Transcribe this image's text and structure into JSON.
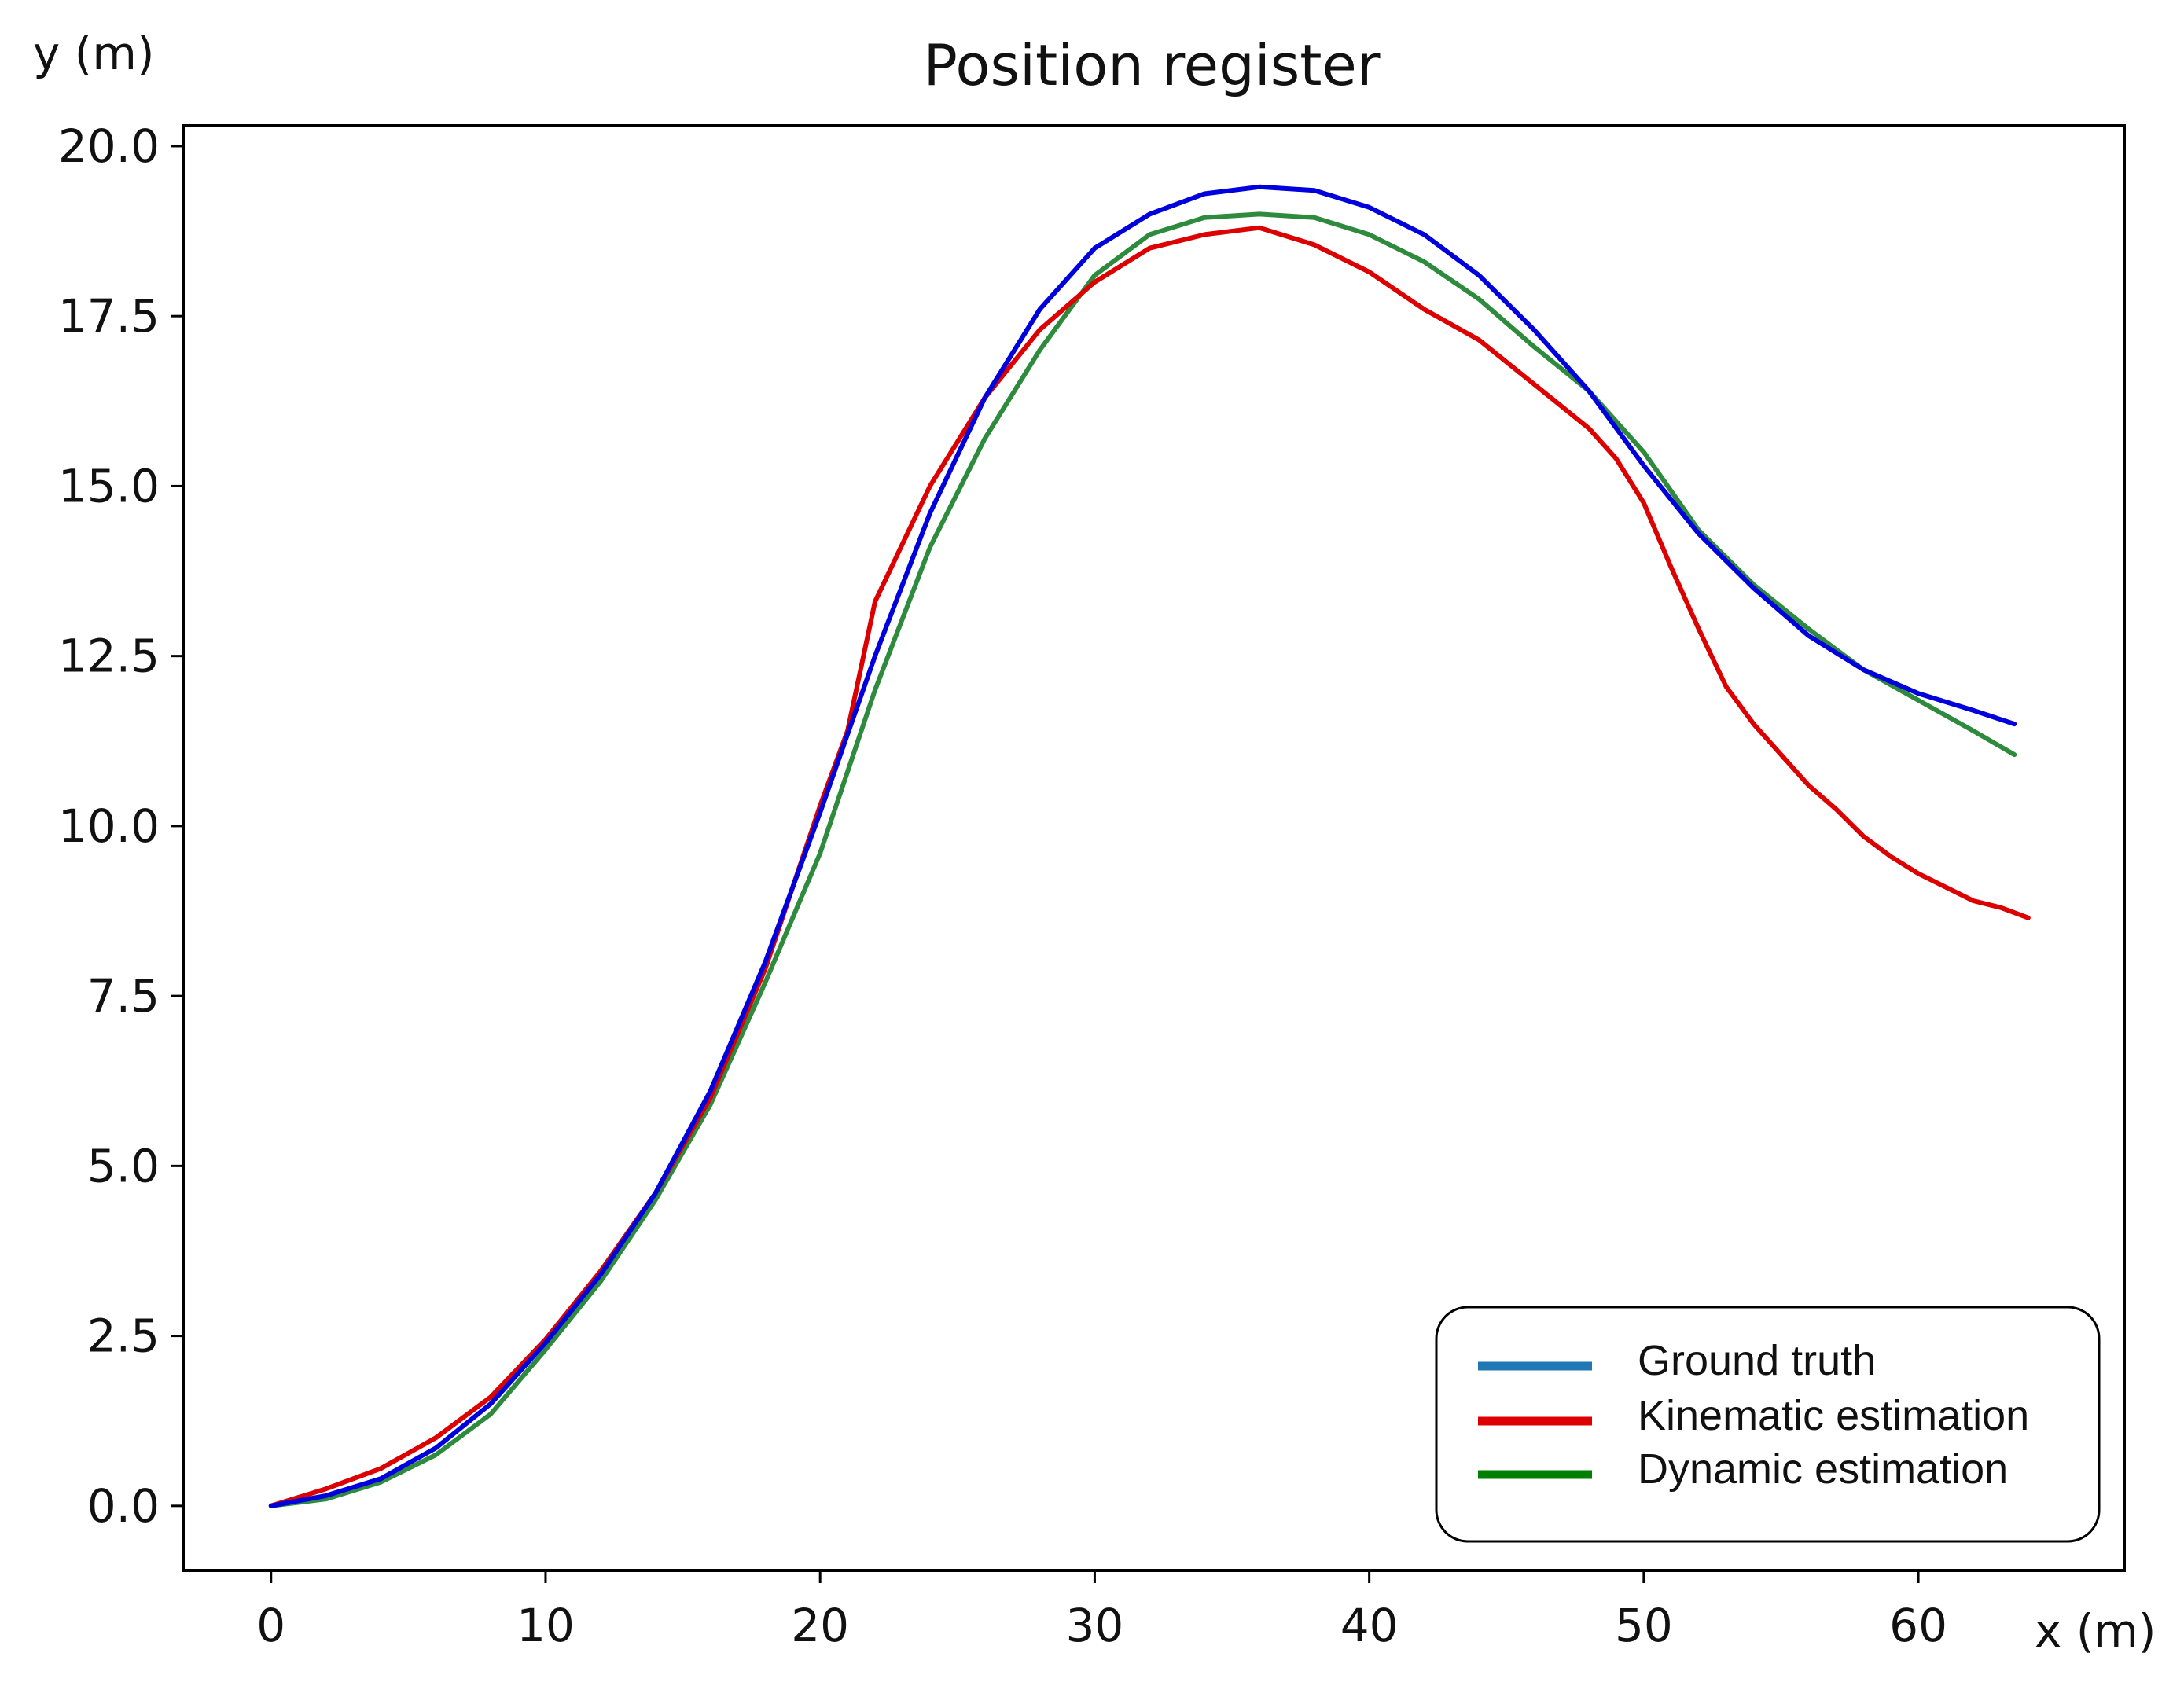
{
  "chart_data": {
    "type": "line",
    "title": "Position register",
    "xlabel": "x (m)",
    "ylabel": "y (m)",
    "xlim": [
      -3.2,
      67.5
    ],
    "ylim": [
      -0.95,
      20.3
    ],
    "xticks": [
      0,
      10,
      20,
      30,
      40,
      50,
      60
    ],
    "xtick_labels": [
      "0",
      "10",
      "20",
      "30",
      "40",
      "50",
      "60"
    ],
    "yticks": [
      0.0,
      2.5,
      5.0,
      7.5,
      10.0,
      12.5,
      15.0,
      17.5,
      20.0
    ],
    "ytick_labels": [
      "0.0",
      "2.5",
      "5.0",
      "7.5",
      "10.0",
      "12.5",
      "15.0",
      "17.5",
      "20.0"
    ],
    "grid": false,
    "legend_position": "lower-right",
    "series": [
      {
        "name": "Ground truth",
        "color": "#0000dd",
        "legend_color": "#1f77b4",
        "x": [
          0,
          2,
          4,
          6,
          8,
          10,
          12,
          14,
          16,
          18,
          20,
          22,
          24,
          26,
          28,
          30,
          32,
          34,
          36,
          38,
          40,
          42,
          44,
          46,
          48,
          50,
          52,
          54,
          56,
          58,
          60,
          62,
          63.5
        ],
        "y": [
          0.0,
          0.15,
          0.4,
          0.85,
          1.5,
          2.4,
          3.4,
          4.6,
          6.1,
          8.0,
          10.2,
          12.5,
          14.6,
          16.3,
          17.6,
          18.5,
          19.0,
          19.3,
          19.4,
          19.35,
          19.1,
          18.7,
          18.1,
          17.3,
          16.4,
          15.3,
          14.3,
          13.5,
          12.8,
          12.3,
          11.95,
          11.7,
          11.5
        ]
      },
      {
        "name": "Kinematic estimation",
        "color": "#dd0000",
        "legend_color": "#dd0000",
        "x": [
          0,
          2,
          4,
          6,
          8,
          10,
          12,
          14,
          16,
          18,
          20,
          21,
          22,
          24,
          26,
          28,
          30,
          32,
          34,
          36,
          38,
          40,
          42,
          44,
          46,
          48,
          49,
          50,
          51,
          52,
          53,
          54,
          55,
          56,
          57,
          58,
          59,
          60,
          61,
          62,
          63,
          64
        ],
        "y": [
          0.0,
          0.25,
          0.55,
          1.0,
          1.6,
          2.45,
          3.45,
          4.6,
          6.0,
          7.9,
          10.3,
          11.4,
          13.3,
          15.0,
          16.3,
          17.3,
          18.0,
          18.5,
          18.7,
          18.8,
          18.55,
          18.15,
          17.6,
          17.15,
          16.5,
          15.85,
          15.4,
          14.75,
          13.8,
          12.9,
          12.05,
          11.5,
          11.05,
          10.6,
          10.25,
          9.85,
          9.55,
          9.3,
          9.1,
          8.9,
          8.8,
          8.65
        ]
      },
      {
        "name": "Dynamic estimation",
        "color": "#2e8b3e",
        "legend_color": "#008000",
        "x": [
          0,
          2,
          4,
          6,
          8,
          10,
          12,
          14,
          16,
          18,
          20,
          22,
          24,
          26,
          28,
          30,
          32,
          34,
          36,
          38,
          40,
          42,
          44,
          46,
          48,
          50,
          52,
          54,
          56,
          58,
          60,
          62,
          63.5
        ],
        "y": [
          0.0,
          0.1,
          0.35,
          0.75,
          1.35,
          2.3,
          3.3,
          4.5,
          5.9,
          7.7,
          9.6,
          12.0,
          14.1,
          15.7,
          17.0,
          18.1,
          18.7,
          18.95,
          19.0,
          18.95,
          18.7,
          18.3,
          17.75,
          17.05,
          16.4,
          15.5,
          14.35,
          13.55,
          12.9,
          12.3,
          11.85,
          11.4,
          11.05
        ]
      }
    ]
  }
}
